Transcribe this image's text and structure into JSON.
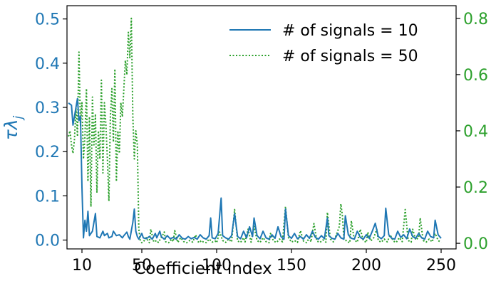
{
  "chart_data": {
    "type": "line",
    "xlabel": "Coefficient index",
    "ylabel_left": "τλ",
    "ylabel_left_sub": "j",
    "xlim": [
      0,
      260
    ],
    "ylim_left": [
      -0.02,
      0.53
    ],
    "ylim_right": [
      -0.02,
      0.845
    ],
    "x_ticks": [
      10,
      50,
      100,
      150,
      200,
      250
    ],
    "y_ticks_left": [
      0.0,
      0.1,
      0.2,
      0.3,
      0.4,
      0.5
    ],
    "y_ticks_right": [
      0.0,
      0.2,
      0.4,
      0.6,
      0.8
    ],
    "x_tick_labels": [
      "10",
      "50",
      "100",
      "150",
      "200",
      "250"
    ],
    "y_tick_labels_left": [
      "0.0",
      "0.1",
      "0.2",
      "0.3",
      "0.4",
      "0.5"
    ],
    "y_tick_labels_right": [
      "0.0",
      "0.2",
      "0.4",
      "0.6",
      "0.8"
    ],
    "grid": false,
    "legend_position": "top-right",
    "series": [
      {
        "name": "# of signals = 10",
        "axis": "left",
        "color": "#1f77b4",
        "style": "solid",
        "points": [
          [
            1,
            0.31
          ],
          [
            3,
            0.305
          ],
          [
            4,
            0.26
          ],
          [
            6,
            0.3
          ],
          [
            7,
            0.32
          ],
          [
            8,
            0.27
          ],
          [
            9,
            0.28
          ],
          [
            10,
            0.12
          ],
          [
            11,
            0.005
          ],
          [
            12,
            0.045
          ],
          [
            13,
            0.02
          ],
          [
            14,
            0.065
          ],
          [
            15,
            0.01
          ],
          [
            17,
            0.02
          ],
          [
            19,
            0.06
          ],
          [
            20,
            0.008
          ],
          [
            22,
            0.005
          ],
          [
            24,
            0.02
          ],
          [
            25,
            0.01
          ],
          [
            27,
            0.015
          ],
          [
            28,
            0.005
          ],
          [
            30,
            0.008
          ],
          [
            31,
            0.02
          ],
          [
            33,
            0.01
          ],
          [
            35,
            0.012
          ],
          [
            37,
            0.005
          ],
          [
            38,
            0.01
          ],
          [
            40,
            0.018
          ],
          [
            41,
            0.008
          ],
          [
            42,
            0.002
          ],
          [
            44,
            0.04
          ],
          [
            45,
            0.07
          ],
          [
            46,
            0.02
          ],
          [
            47,
            0.008
          ],
          [
            48,
            0.002
          ],
          [
            50,
            0.015
          ],
          [
            51,
            0.005
          ],
          [
            53,
            0.003
          ],
          [
            55,
            0.008
          ],
          [
            57,
            0.002
          ],
          [
            59,
            0.015
          ],
          [
            60,
            0.005
          ],
          [
            62,
            0.02
          ],
          [
            63,
            0.008
          ],
          [
            65,
            0.002
          ],
          [
            67,
            0.01
          ],
          [
            69,
            0.003
          ],
          [
            71,
            0.006
          ],
          [
            73,
            0.002
          ],
          [
            75,
            0.012
          ],
          [
            77,
            0.004
          ],
          [
            79,
            0.002
          ],
          [
            81,
            0.008
          ],
          [
            83,
            0.003
          ],
          [
            85,
            0.006
          ],
          [
            87,
            0.002
          ],
          [
            89,
            0.012
          ],
          [
            91,
            0.005
          ],
          [
            93,
            0.002
          ],
          [
            95,
            0.01
          ],
          [
            96,
            0.05
          ],
          [
            97,
            0.005
          ],
          [
            99,
            0.003
          ],
          [
            101,
            0.015
          ],
          [
            103,
            0.095
          ],
          [
            104,
            0.01
          ],
          [
            106,
            0.005
          ],
          [
            108,
            0.002
          ],
          [
            110,
            0.01
          ],
          [
            112,
            0.06
          ],
          [
            114,
            0.008
          ],
          [
            116,
            0.003
          ],
          [
            118,
            0.02
          ],
          [
            120,
            0.005
          ],
          [
            122,
            0.03
          ],
          [
            124,
            0.008
          ],
          [
            125,
            0.05
          ],
          [
            127,
            0.01
          ],
          [
            129,
            0.003
          ],
          [
            131,
            0.02
          ],
          [
            133,
            0.005
          ],
          [
            135,
            0.002
          ],
          [
            137,
            0.012
          ],
          [
            139,
            0.004
          ],
          [
            141,
            0.03
          ],
          [
            143,
            0.008
          ],
          [
            145,
            0.002
          ],
          [
            146,
            0.07
          ],
          [
            148,
            0.01
          ],
          [
            150,
            0.004
          ],
          [
            152,
            0.015
          ],
          [
            154,
            0.003
          ],
          [
            156,
            0.008
          ],
          [
            158,
            0.002
          ],
          [
            160,
            0.012
          ],
          [
            162,
            0.004
          ],
          [
            164,
            0.02
          ],
          [
            166,
            0.006
          ],
          [
            168,
            0.002
          ],
          [
            170,
            0.01
          ],
          [
            172,
            0.003
          ],
          [
            174,
            0.05
          ],
          [
            175,
            0.01
          ],
          [
            177,
            0.004
          ],
          [
            179,
            0.002
          ],
          [
            181,
            0.015
          ],
          [
            183,
            0.005
          ],
          [
            185,
            0.002
          ],
          [
            186,
            0.055
          ],
          [
            188,
            0.012
          ],
          [
            190,
            0.004
          ],
          [
            192,
            0.002
          ],
          [
            194,
            0.02
          ],
          [
            196,
            0.006
          ],
          [
            198,
            0.002
          ],
          [
            200,
            0.012
          ],
          [
            202,
            0.004
          ],
          [
            204,
            0.02
          ],
          [
            206,
            0.038
          ],
          [
            208,
            0.008
          ],
          [
            210,
            0.003
          ],
          [
            212,
            0.01
          ],
          [
            213,
            0.072
          ],
          [
            215,
            0.012
          ],
          [
            217,
            0.004
          ],
          [
            219,
            0.002
          ],
          [
            221,
            0.02
          ],
          [
            223,
            0.006
          ],
          [
            225,
            0.012
          ],
          [
            227,
            0.003
          ],
          [
            229,
            0.025
          ],
          [
            231,
            0.008
          ],
          [
            233,
            0.004
          ],
          [
            235,
            0.015
          ],
          [
            237,
            0.005
          ],
          [
            239,
            0.002
          ],
          [
            241,
            0.02
          ],
          [
            243,
            0.008
          ],
          [
            245,
            0.005
          ],
          [
            246,
            0.045
          ],
          [
            248,
            0.012
          ],
          [
            250,
            0.004
          ]
        ]
      },
      {
        "name": "# of signals = 50",
        "axis": "right",
        "color": "#2ca02c",
        "style": "dotted",
        "points": [
          [
            1,
            0.38
          ],
          [
            2,
            0.4
          ],
          [
            3,
            0.35
          ],
          [
            4,
            0.32
          ],
          [
            5,
            0.37
          ],
          [
            6,
            0.48
          ],
          [
            7,
            0.38
          ],
          [
            8,
            0.68
          ],
          [
            9,
            0.42
          ],
          [
            10,
            0.5
          ],
          [
            11,
            0.3
          ],
          [
            12,
            0.38
          ],
          [
            13,
            0.55
          ],
          [
            14,
            0.22
          ],
          [
            15,
            0.45
          ],
          [
            16,
            0.13
          ],
          [
            17,
            0.52
          ],
          [
            18,
            0.35
          ],
          [
            19,
            0.46
          ],
          [
            20,
            0.18
          ],
          [
            21,
            0.4
          ],
          [
            22,
            0.3
          ],
          [
            23,
            0.58
          ],
          [
            24,
            0.25
          ],
          [
            25,
            0.5
          ],
          [
            26,
            0.42
          ],
          [
            27,
            0.3
          ],
          [
            28,
            0.15
          ],
          [
            29,
            0.45
          ],
          [
            30,
            0.55
          ],
          [
            31,
            0.36
          ],
          [
            32,
            0.62
          ],
          [
            33,
            0.22
          ],
          [
            34,
            0.4
          ],
          [
            35,
            0.32
          ],
          [
            36,
            0.5
          ],
          [
            37,
            0.45
          ],
          [
            38,
            0.55
          ],
          [
            39,
            0.65
          ],
          [
            40,
            0.6
          ],
          [
            41,
            0.75
          ],
          [
            42,
            0.66
          ],
          [
            43,
            0.8
          ],
          [
            44,
            0.45
          ],
          [
            45,
            0.3
          ],
          [
            46,
            0.4
          ],
          [
            47,
            0.35
          ],
          [
            48,
            0.05
          ],
          [
            49,
            0.01
          ],
          [
            50,
            0.002
          ],
          [
            51,
            0.005
          ],
          [
            53,
            0.02
          ],
          [
            55,
            0.002
          ],
          [
            56,
            0.05
          ],
          [
            58,
            0.005
          ],
          [
            60,
            0.01
          ],
          [
            61,
            0.003
          ],
          [
            63,
            0.02
          ],
          [
            65,
            0.04
          ],
          [
            66,
            0.005
          ],
          [
            68,
            0.002
          ],
          [
            70,
            0.015
          ],
          [
            71,
            0.006
          ],
          [
            72,
            0.045
          ],
          [
            74,
            0.003
          ],
          [
            76,
            0.02
          ],
          [
            78,
            0.006
          ],
          [
            80,
            0.002
          ],
          [
            82,
            0.01
          ],
          [
            84,
            0.004
          ],
          [
            86,
            0.03
          ],
          [
            88,
            0.002
          ],
          [
            90,
            0.01
          ],
          [
            91,
            0.005
          ],
          [
            93,
            0.002
          ],
          [
            95,
            0.015
          ],
          [
            97,
            0.004
          ],
          [
            99,
            0.008
          ],
          [
            100,
            0.002
          ],
          [
            102,
            0.04
          ],
          [
            104,
            0.01
          ],
          [
            106,
            0.003
          ],
          [
            108,
            0.015
          ],
          [
            110,
            0.005
          ],
          [
            112,
            0.12
          ],
          [
            114,
            0.008
          ],
          [
            116,
            0.003
          ],
          [
            118,
            0.02
          ],
          [
            119,
            0.005
          ],
          [
            121,
            0.05
          ],
          [
            123,
            0.004
          ],
          [
            125,
            0.06
          ],
          [
            127,
            0.01
          ],
          [
            129,
            0.003
          ],
          [
            131,
            0.02
          ],
          [
            133,
            0.006
          ],
          [
            135,
            0.002
          ],
          [
            136,
            0.035
          ],
          [
            138,
            0.008
          ],
          [
            140,
            0.003
          ],
          [
            142,
            0.015
          ],
          [
            144,
            0.005
          ],
          [
            146,
            0.13
          ],
          [
            148,
            0.02
          ],
          [
            150,
            0.004
          ],
          [
            152,
            0.01
          ],
          [
            154,
            0.003
          ],
          [
            156,
            0.045
          ],
          [
            158,
            0.008
          ],
          [
            160,
            0.002
          ],
          [
            162,
            0.02
          ],
          [
            163,
            0.005
          ],
          [
            165,
            0.07
          ],
          [
            167,
            0.008
          ],
          [
            169,
            0.003
          ],
          [
            171,
            0.012
          ],
          [
            173,
            0.004
          ],
          [
            174,
            0.11
          ],
          [
            176,
            0.015
          ],
          [
            178,
            0.005
          ],
          [
            180,
            0.03
          ],
          [
            182,
            0.06
          ],
          [
            183,
            0.14
          ],
          [
            184,
            0.1
          ],
          [
            185,
            0.02
          ],
          [
            187,
            0.006
          ],
          [
            189,
            0.002
          ],
          [
            190,
            0.08
          ],
          [
            192,
            0.012
          ],
          [
            194,
            0.004
          ],
          [
            196,
            0.05
          ],
          [
            198,
            0.01
          ],
          [
            200,
            0.003
          ],
          [
            201,
            0.04
          ],
          [
            203,
            0.008
          ],
          [
            205,
            0.02
          ],
          [
            207,
            0.05
          ],
          [
            208,
            0.01
          ],
          [
            210,
            0.004
          ],
          [
            212,
            0.015
          ],
          [
            214,
            0.005
          ],
          [
            216,
            0.03
          ],
          [
            218,
            0.008
          ],
          [
            220,
            0.003
          ],
          [
            222,
            0.02
          ],
          [
            224,
            0.006
          ],
          [
            226,
            0.12
          ],
          [
            228,
            0.01
          ],
          [
            230,
            0.004
          ],
          [
            231,
            0.05
          ],
          [
            233,
            0.012
          ],
          [
            235,
            0.02
          ],
          [
            236,
            0.09
          ],
          [
            238,
            0.01
          ],
          [
            240,
            0.004
          ],
          [
            242,
            0.015
          ],
          [
            244,
            0.005
          ],
          [
            245,
            0.02
          ],
          [
            246,
            0.035
          ],
          [
            248,
            0.01
          ],
          [
            250,
            0.003
          ]
        ]
      }
    ]
  }
}
